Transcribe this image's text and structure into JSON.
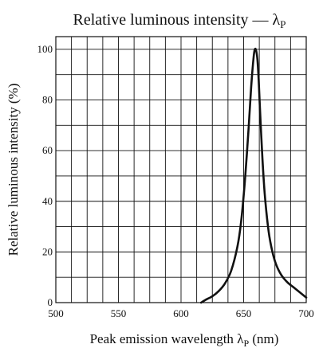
{
  "chart_data": {
    "type": "line",
    "title": "Relative luminous intensity —",
    "title_symbol": "λ",
    "title_subscript": "P",
    "xlabel": "Peak emission wavelength",
    "xlabel_symbol": "λ",
    "xlabel_subscript": "P",
    "xlabel_unit": "(nm)",
    "ylabel": "Relative luminous intensity",
    "ylabel_unit": "(%)",
    "xlim": [
      500,
      700
    ],
    "ylim": [
      0,
      105
    ],
    "x_ticks": [
      500,
      550,
      600,
      650,
      700
    ],
    "x_tick_labels": [
      "500",
      "550",
      "600",
      "650",
      "700"
    ],
    "y_ticks": [
      0,
      20,
      40,
      60,
      80,
      100
    ],
    "y_tick_labels": [
      "0",
      "20",
      "40",
      "60",
      "80",
      "100"
    ],
    "grid": true,
    "series": [
      {
        "x": [
          616,
          620,
          625,
          630,
          635,
          640,
          645,
          648,
          651,
          654,
          656,
          658,
          659,
          660,
          661,
          662,
          663,
          665,
          667,
          670,
          673,
          676,
          680,
          685,
          690,
          695,
          700
        ],
        "y": [
          0,
          1.2,
          2.5,
          4.5,
          7.5,
          12.5,
          22,
          32,
          48,
          69,
          85,
          97,
          100,
          99.5,
          96,
          88,
          77,
          57,
          42,
          28,
          20,
          15,
          11,
          8,
          6,
          4,
          2
        ]
      }
    ]
  }
}
